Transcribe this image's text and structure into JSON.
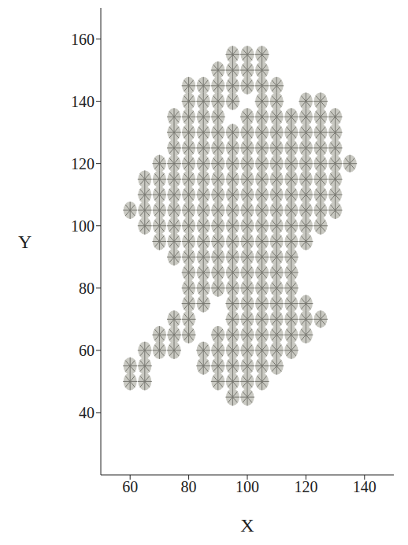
{
  "chart_data": {
    "type": "scatter",
    "x_label": "X",
    "y_label": "Y",
    "xlim": [
      50,
      150
    ],
    "xticks": [
      60,
      80,
      100,
      120,
      140
    ],
    "ylim": [
      20,
      170
    ],
    "yticks": [
      40,
      60,
      80,
      100,
      120,
      140,
      160
    ],
    "grid": false,
    "color": "#c9c9c2",
    "x": [
      95,
      100,
      105,
      90,
      95,
      100,
      105,
      80,
      85,
      90,
      95,
      100,
      105,
      110,
      80,
      85,
      90,
      95,
      105,
      110,
      120,
      125,
      75,
      80,
      85,
      90,
      100,
      105,
      110,
      115,
      120,
      125,
      130,
      75,
      80,
      85,
      90,
      95,
      100,
      105,
      110,
      115,
      120,
      125,
      130,
      75,
      80,
      85,
      90,
      95,
      100,
      105,
      110,
      115,
      120,
      125,
      130,
      70,
      75,
      80,
      85,
      90,
      95,
      100,
      105,
      110,
      115,
      120,
      125,
      130,
      135,
      65,
      70,
      75,
      80,
      85,
      90,
      95,
      100,
      105,
      110,
      115,
      120,
      125,
      130,
      65,
      70,
      75,
      80,
      85,
      90,
      95,
      100,
      105,
      110,
      115,
      120,
      125,
      130,
      60,
      65,
      70,
      75,
      80,
      85,
      90,
      95,
      100,
      105,
      110,
      115,
      120,
      125,
      130,
      65,
      70,
      75,
      80,
      85,
      90,
      95,
      100,
      105,
      110,
      115,
      120,
      125,
      70,
      75,
      80,
      85,
      90,
      95,
      100,
      105,
      110,
      115,
      120,
      75,
      80,
      85,
      90,
      95,
      100,
      105,
      110,
      115,
      80,
      85,
      90,
      95,
      100,
      105,
      110,
      115,
      80,
      85,
      90,
      95,
      100,
      105,
      110,
      115,
      80,
      85,
      95,
      100,
      105,
      110,
      115,
      120,
      75,
      80,
      95,
      100,
      105,
      110,
      115,
      120,
      125,
      70,
      75,
      80,
      90,
      95,
      100,
      105,
      110,
      115,
      120,
      65,
      70,
      75,
      85,
      90,
      95,
      100,
      105,
      110,
      115,
      60,
      65,
      85,
      90,
      95,
      100,
      105,
      110,
      60,
      65,
      90,
      95,
      100,
      105,
      95,
      100
    ],
    "y": [
      155,
      155,
      155,
      150,
      150,
      150,
      150,
      145,
      145,
      145,
      145,
      145,
      145,
      145,
      140,
      140,
      140,
      140,
      140,
      140,
      140,
      140,
      135,
      135,
      135,
      135,
      135,
      135,
      135,
      135,
      135,
      135,
      135,
      130,
      130,
      130,
      130,
      130,
      130,
      130,
      130,
      130,
      130,
      130,
      130,
      125,
      125,
      125,
      125,
      125,
      125,
      125,
      125,
      125,
      125,
      125,
      125,
      120,
      120,
      120,
      120,
      120,
      120,
      120,
      120,
      120,
      120,
      120,
      120,
      120,
      120,
      115,
      115,
      115,
      115,
      115,
      115,
      115,
      115,
      115,
      115,
      115,
      115,
      115,
      115,
      110,
      110,
      110,
      110,
      110,
      110,
      110,
      110,
      110,
      110,
      110,
      110,
      110,
      110,
      105,
      105,
      105,
      105,
      105,
      105,
      105,
      105,
      105,
      105,
      105,
      105,
      105,
      105,
      105,
      100,
      100,
      100,
      100,
      100,
      100,
      100,
      100,
      100,
      100,
      100,
      100,
      100,
      95,
      95,
      95,
      95,
      95,
      95,
      95,
      95,
      95,
      95,
      95,
      90,
      90,
      90,
      90,
      90,
      90,
      90,
      90,
      90,
      85,
      85,
      85,
      85,
      85,
      85,
      85,
      85,
      80,
      80,
      80,
      80,
      80,
      80,
      80,
      80,
      75,
      75,
      75,
      75,
      75,
      75,
      75,
      75,
      70,
      70,
      70,
      70,
      70,
      70,
      70,
      70,
      70,
      65,
      65,
      65,
      65,
      65,
      65,
      65,
      65,
      65,
      65,
      60,
      60,
      60,
      60,
      60,
      60,
      60,
      60,
      60,
      60,
      55,
      55,
      55,
      55,
      55,
      55,
      55,
      55,
      50,
      50,
      50,
      50,
      50,
      50,
      45,
      45
    ]
  }
}
